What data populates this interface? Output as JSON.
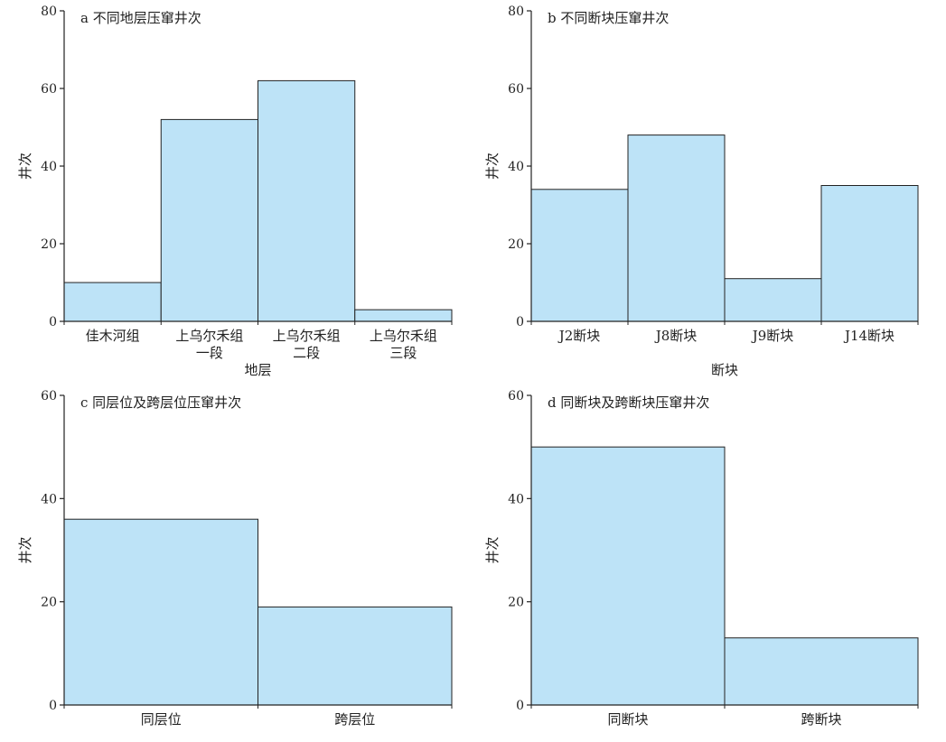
{
  "chart_data": [
    {
      "type": "bar",
      "title": "a 不同地层压窜井次",
      "xlabel": "地层",
      "ylabel": "井次",
      "ylim": [
        0,
        80
      ],
      "yticks": [
        0,
        20,
        40,
        60,
        80
      ],
      "categories": [
        "佳木河组",
        "上乌尔禾组\n一段",
        "上乌尔禾组\n二段",
        "上乌尔禾组\n三段"
      ],
      "values": [
        10,
        52,
        62,
        3
      ],
      "grid": false,
      "bar_color": "#bde3f7"
    },
    {
      "type": "bar",
      "title": "b 不同断块压窜井次",
      "xlabel": "断块",
      "ylabel": "井次",
      "ylim": [
        0,
        80
      ],
      "yticks": [
        0,
        20,
        40,
        60,
        80
      ],
      "categories": [
        "J2断块",
        "J8断块",
        "J9断块",
        "J14断块"
      ],
      "values": [
        34,
        48,
        11,
        35
      ],
      "grid": false,
      "bar_color": "#bde3f7"
    },
    {
      "type": "bar",
      "title": "c 同层位及跨层位压窜井次",
      "xlabel": "",
      "ylabel": "井次",
      "ylim": [
        0,
        60
      ],
      "yticks": [
        0,
        20,
        40,
        60
      ],
      "categories": [
        "同层位",
        "跨层位"
      ],
      "values": [
        36,
        19
      ],
      "grid": false,
      "bar_color": "#bde3f7"
    },
    {
      "type": "bar",
      "title": "d 同断块及跨断块压窜井次",
      "xlabel": "",
      "ylabel": "井次",
      "ylim": [
        0,
        60
      ],
      "yticks": [
        0,
        20,
        40,
        60
      ],
      "categories": [
        "同断块",
        "跨断块"
      ],
      "values": [
        50,
        13
      ],
      "grid": false,
      "bar_color": "#bde3f7"
    }
  ]
}
